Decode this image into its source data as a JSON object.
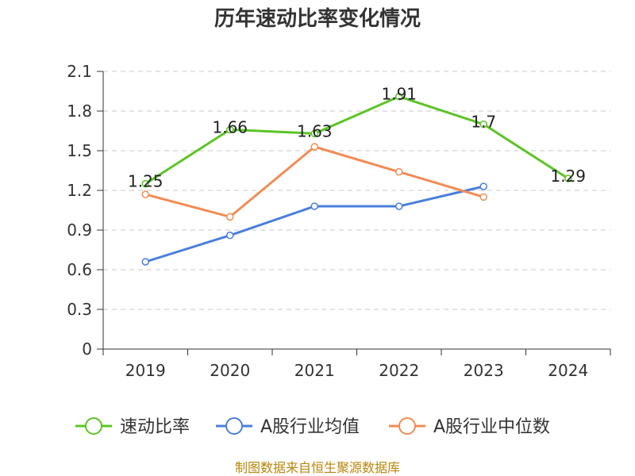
{
  "chart_data": {
    "type": "line",
    "title": "历年速动比率变化情况",
    "xlabel": "",
    "ylabel": "",
    "categories": [
      "2019",
      "2020",
      "2021",
      "2022",
      "2023",
      "2024"
    ],
    "ylim": [
      0,
      2.1
    ],
    "yticks": [
      "0",
      "0.3",
      "0.6",
      "0.9",
      "1.2",
      "1.5",
      "1.8",
      "2.1"
    ],
    "grid": true,
    "legend_position": "bottom",
    "series": [
      {
        "name": "速动比率",
        "color": "#5cc427",
        "values": [
          1.25,
          1.66,
          1.63,
          1.91,
          1.7,
          1.29
        ],
        "labels": [
          "1.25",
          "1.66",
          "1.63",
          "1.91",
          "1.7",
          "1.29"
        ]
      },
      {
        "name": "A股行业均值",
        "color": "#4a7fdb",
        "values": [
          0.66,
          0.86,
          1.08,
          1.08,
          1.23,
          null
        ]
      },
      {
        "name": "A股行业中位数",
        "color": "#f28c55",
        "values": [
          1.17,
          1.0,
          1.53,
          1.34,
          1.15,
          null
        ]
      }
    ]
  },
  "source": "制图数据来自恒生聚源数据库"
}
